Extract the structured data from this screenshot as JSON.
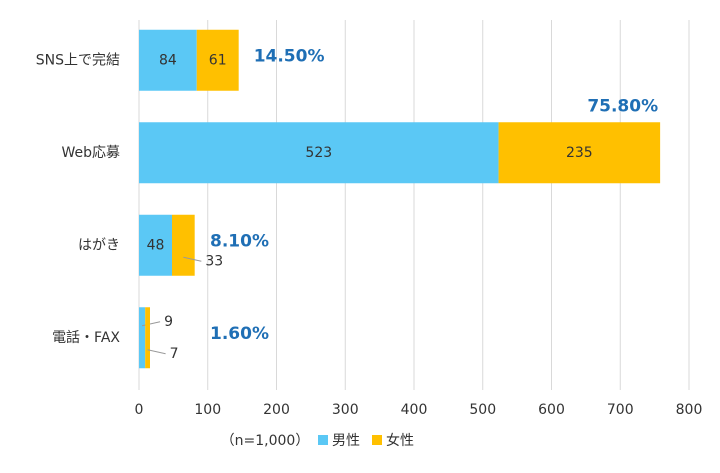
{
  "chart_data": {
    "type": "stacked-barh",
    "categories": [
      "SNS上で完結",
      "Web応募",
      "はがき",
      "電話・FAX"
    ],
    "series": [
      {
        "name": "男性",
        "color": "#5bc8f5",
        "values": [
          84,
          523,
          48,
          9
        ]
      },
      {
        "name": "女性",
        "color": "#ffc000",
        "values": [
          61,
          235,
          33,
          7
        ]
      }
    ],
    "annotations": [
      "14.50%",
      "75.80%",
      "8.10%",
      "1.60%"
    ],
    "note": "（n=1,000）",
    "xlim": [
      0,
      800
    ],
    "xticks": [
      0,
      100,
      200,
      300,
      400,
      500,
      600,
      700,
      800
    ],
    "grid": true
  }
}
